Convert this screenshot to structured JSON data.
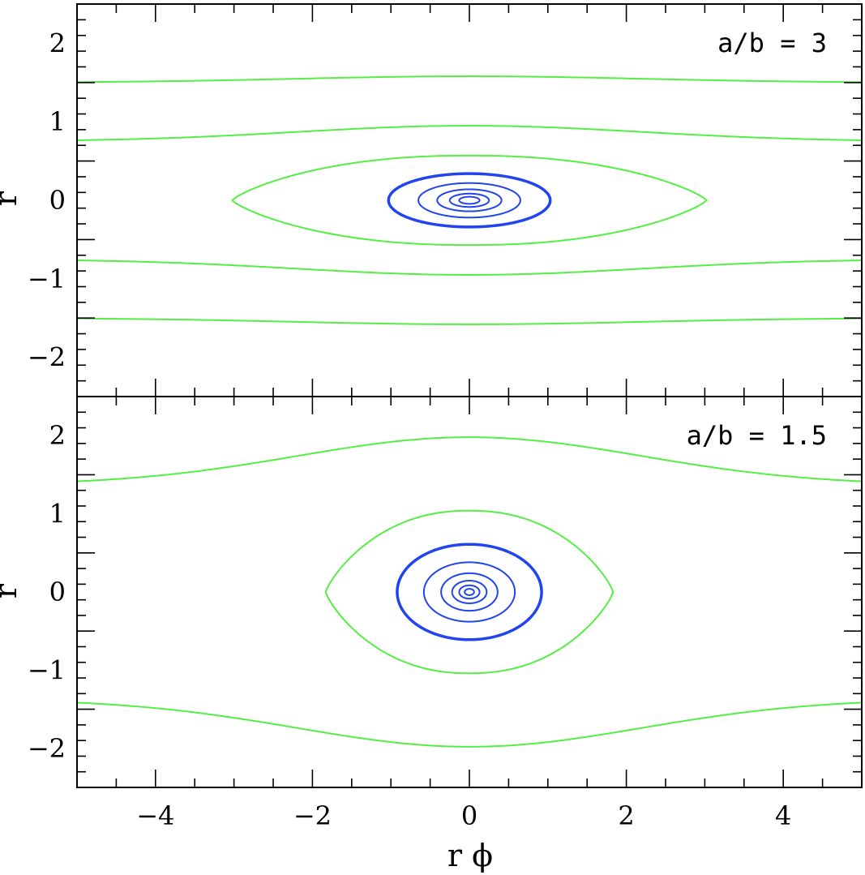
{
  "chart_data": [
    {
      "type": "line",
      "panel": "top",
      "annotation": "a/b = 3",
      "xlabel": "",
      "ylabel": "r",
      "xlim": [
        -5,
        5
      ],
      "ylim": [
        -2.5,
        2.5
      ],
      "x_ticks": [
        -4,
        -2,
        0,
        2,
        4
      ],
      "y_ticks": [
        -2,
        -1,
        0,
        1,
        2
      ],
      "y_tick_labels": [
        "−2",
        "−1",
        "0",
        "1",
        "2"
      ],
      "grid": false,
      "colors": {
        "open": "#55ee44",
        "closed": "#2244ee"
      },
      "series": [
        {
          "kind": "open",
          "y_at_0": 1.58,
          "y_at_edge": 1.5,
          "sign": 1,
          "width": 2
        },
        {
          "kind": "open",
          "y_at_0": 0.95,
          "y_at_edge": 0.75,
          "sign": 1,
          "width": 2
        },
        {
          "kind": "open",
          "y_at_0": 0.95,
          "y_at_edge": 0.75,
          "sign": -1,
          "width": 2
        },
        {
          "kind": "open",
          "y_at_0": 1.58,
          "y_at_edge": 1.5,
          "sign": -1,
          "width": 2
        },
        {
          "kind": "separatrix",
          "x_half": 3.02,
          "y_half": 0.57,
          "width": 2
        },
        {
          "kind": "closed",
          "x_half": 1.03,
          "y_half": 0.34,
          "width": 3.5
        },
        {
          "kind": "closed",
          "x_half": 0.65,
          "y_half": 0.22,
          "width": 2
        },
        {
          "kind": "closed",
          "x_half": 0.41,
          "y_half": 0.14,
          "width": 2
        },
        {
          "kind": "closed",
          "x_half": 0.25,
          "y_half": 0.085,
          "width": 2
        },
        {
          "kind": "closed",
          "x_half": 0.13,
          "y_half": 0.045,
          "width": 2
        }
      ]
    },
    {
      "type": "line",
      "panel": "bottom",
      "annotation": "a/b = 1.5",
      "xlabel": "r  ϕ",
      "ylabel": "r",
      "xlim": [
        -5,
        5
      ],
      "ylim": [
        -2.5,
        2.5
      ],
      "x_ticks": [
        -4,
        -2,
        0,
        2,
        4
      ],
      "x_tick_labels": [
        "−4",
        "−2",
        "0",
        "2",
        "4"
      ],
      "y_ticks": [
        -2,
        -1,
        0,
        1,
        2
      ],
      "y_tick_labels": [
        "−2",
        "−1",
        "0",
        "1",
        "2"
      ],
      "grid": false,
      "colors": {
        "open": "#55ee44",
        "closed": "#2244ee"
      },
      "series": [
        {
          "kind": "open",
          "y_at_0": 1.98,
          "y_at_edge": 1.37,
          "sign": 1,
          "width": 2
        },
        {
          "kind": "open",
          "y_at_0": 1.98,
          "y_at_edge": 1.37,
          "sign": -1,
          "width": 2
        },
        {
          "kind": "separatrix",
          "x_half": 1.83,
          "y_half": 1.04,
          "width": 2
        },
        {
          "kind": "closed",
          "x_half": 0.92,
          "y_half": 0.61,
          "width": 3.5
        },
        {
          "kind": "closed",
          "x_half": 0.58,
          "y_half": 0.38,
          "width": 2
        },
        {
          "kind": "closed",
          "x_half": 0.36,
          "y_half": 0.24,
          "width": 2
        },
        {
          "kind": "closed",
          "x_half": 0.22,
          "y_half": 0.145,
          "width": 2
        },
        {
          "kind": "closed",
          "x_half": 0.13,
          "y_half": 0.085,
          "width": 2
        },
        {
          "kind": "closed",
          "x_half": 0.06,
          "y_half": 0.04,
          "width": 2
        }
      ]
    }
  ]
}
